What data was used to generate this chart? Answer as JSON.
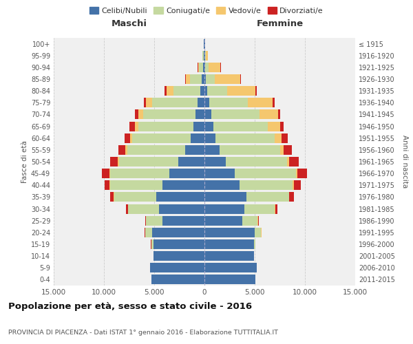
{
  "age_groups": [
    "0-4",
    "5-9",
    "10-14",
    "15-19",
    "20-24",
    "25-29",
    "30-34",
    "35-39",
    "40-44",
    "45-49",
    "50-54",
    "55-59",
    "60-64",
    "65-69",
    "70-74",
    "75-79",
    "80-84",
    "85-89",
    "90-94",
    "95-99",
    "100+"
  ],
  "birth_years": [
    "2011-2015",
    "2006-2010",
    "2001-2005",
    "1996-2000",
    "1991-1995",
    "1986-1990",
    "1981-1985",
    "1976-1980",
    "1971-1975",
    "1966-1970",
    "1961-1965",
    "1956-1960",
    "1951-1955",
    "1946-1950",
    "1941-1945",
    "1936-1940",
    "1931-1935",
    "1926-1930",
    "1921-1925",
    "1916-1920",
    "≤ 1915"
  ],
  "maschi": {
    "celibi": [
      5300,
      5400,
      5050,
      5100,
      5200,
      4200,
      4500,
      4800,
      4200,
      3500,
      2600,
      1900,
      1400,
      1100,
      900,
      700,
      400,
      250,
      120,
      80,
      50
    ],
    "coniugati": [
      0,
      0,
      50,
      200,
      700,
      1600,
      3100,
      4200,
      5200,
      5900,
      5900,
      5800,
      5800,
      5500,
      5200,
      4500,
      2700,
      1200,
      400,
      100,
      30
    ],
    "vedovi": [
      0,
      0,
      0,
      0,
      5,
      10,
      20,
      30,
      60,
      80,
      100,
      150,
      200,
      350,
      500,
      600,
      700,
      400,
      120,
      30,
      5
    ],
    "divorziati": [
      0,
      0,
      0,
      10,
      30,
      80,
      200,
      350,
      500,
      700,
      750,
      700,
      550,
      500,
      350,
      200,
      150,
      100,
      50,
      20,
      5
    ]
  },
  "femmine": {
    "nubili": [
      5100,
      5200,
      4900,
      4900,
      5000,
      3800,
      4000,
      4200,
      3500,
      3000,
      2100,
      1500,
      1100,
      900,
      700,
      500,
      250,
      150,
      80,
      50,
      50
    ],
    "coniugate": [
      0,
      0,
      40,
      150,
      650,
      1500,
      3000,
      4200,
      5300,
      6100,
      6100,
      6000,
      5900,
      5400,
      4800,
      3800,
      2000,
      900,
      300,
      80,
      20
    ],
    "vedove": [
      0,
      0,
      0,
      5,
      10,
      15,
      30,
      50,
      80,
      120,
      200,
      400,
      700,
      1200,
      1800,
      2500,
      2800,
      2500,
      1200,
      200,
      20
    ],
    "divorziate": [
      0,
      0,
      0,
      10,
      30,
      80,
      200,
      450,
      700,
      1000,
      1000,
      800,
      600,
      400,
      200,
      200,
      150,
      80,
      50,
      20,
      5
    ]
  },
  "colors": {
    "celibi": "#4472a8",
    "coniugati": "#c5d9a0",
    "vedovi": "#f5c76e",
    "divorziati": "#cc2222"
  },
  "title": "Popolazione per età, sesso e stato civile - 2016",
  "subtitle": "PROVINCIA DI PIACENZA - Dati ISTAT 1° gennaio 2016 - Elaborazione TUTTITALIA.IT",
  "xlim": 15000,
  "xlabel_left": "Maschi",
  "xlabel_right": "Femmine",
  "ylabel_left": "Fasce di età",
  "ylabel_right": "Anni di nascita",
  "bg_color": "#f0f0f0",
  "grid_color": "#cccccc"
}
